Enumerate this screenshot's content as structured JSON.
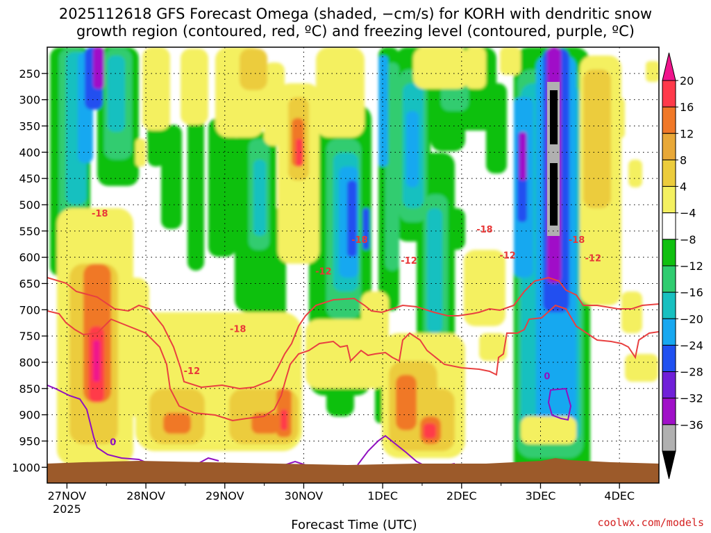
{
  "title": {
    "line1": "2025112618 GFS Forecast Omega (shaded, −cm/s) for KORH with dendritic snow",
    "line2": "growth region (contoured, red, ºC) and freezing level (contoured, purple, ºC)"
  },
  "credit": "coolwx.com/models",
  "chart_data": {
    "type": "heatmap",
    "title": "2025112618 GFS Forecast Omega (shaded, −cm/s) for KORH with dendritic snow growth region (contoured, red, ºC) and freezing level (contoured, purple, ºC)",
    "xlabel": "Forecast Time (UTC)",
    "ylabel": "",
    "x_range_hours": [
      0,
      186
    ],
    "y_range_hpa": [
      200,
      1030
    ],
    "x_ticks": [
      {
        "label": "27NOV",
        "hour": 6,
        "sub": "2025"
      },
      {
        "label": "28NOV",
        "hour": 30
      },
      {
        "label": "29NOV",
        "hour": 54
      },
      {
        "label": "30NOV",
        "hour": 78
      },
      {
        "label": "1DEC",
        "hour": 102
      },
      {
        "label": "2DEC",
        "hour": 126
      },
      {
        "label": "3DEC",
        "hour": 150
      },
      {
        "label": "4DEC",
        "hour": 174
      }
    ],
    "y_ticks": [
      {
        "label": "250",
        "p": 250
      },
      {
        "label": "300",
        "p": 300
      },
      {
        "label": "350",
        "p": 350
      },
      {
        "label": "400",
        "p": 400
      },
      {
        "label": "450",
        "p": 450
      },
      {
        "label": "500",
        "p": 500
      },
      {
        "label": "550",
        "p": 550
      },
      {
        "label": "600",
        "p": 600
      },
      {
        "label": "650",
        "p": 650
      },
      {
        "label": "700",
        "p": 700
      },
      {
        "label": "750",
        "p": 750
      },
      {
        "label": "800",
        "p": 800
      },
      {
        "label": "850",
        "p": 850
      },
      {
        "label": "900",
        "p": 900
      },
      {
        "label": "950",
        "p": 950
      },
      {
        "label": "1000",
        "p": 1000
      }
    ],
    "colorbar": {
      "levels": [
        -36,
        -32,
        -28,
        -24,
        -20,
        -16,
        -12,
        -8,
        -4,
        4,
        8,
        12,
        16,
        20
      ],
      "labels": [
        "20",
        "16",
        "12",
        "8",
        "4",
        "−4",
        "−8",
        "−12",
        "−16",
        "−20",
        "−24",
        "−28",
        "−32",
        "−36"
      ],
      "colors_top_to_bottom": [
        "#ff3a4a",
        "#f07828",
        "#e8a838",
        "#eccc3c",
        "#f4f060",
        "#ffffff",
        "#10c010",
        "#30cc70",
        "#18c0c0",
        "#18a8f0",
        "#2050f0",
        "#7020d8",
        "#a010c8",
        "#b0b0b0"
      ],
      "over_color": "#f0148c",
      "under_color": "#000000"
    },
    "shaded_features": [
      {
        "name": "strong ascent 27 Nov",
        "hour": 12,
        "p_top": 420,
        "p_bottom": 900,
        "peak_cm_s": 20
      },
      {
        "name": "lower ascent 29 Nov",
        "hour": 68,
        "p_top": 620,
        "p_bottom": 920,
        "peak_cm_s": 16
      },
      {
        "name": "lower ascent 1 Dec",
        "hour": 112,
        "p_top": 560,
        "p_bottom": 920,
        "peak_cm_s": 20
      },
      {
        "name": "strong descent 3 Dec",
        "hour": 150,
        "p_top": 210,
        "p_bottom": 430,
        "peak_cm_s": -36
      },
      {
        "name": "descent 30 Nov",
        "hour": 95,
        "p_top": 250,
        "p_bottom": 500,
        "peak_cm_s": -24
      }
    ],
    "contour_labels": [
      {
        "text": "-18",
        "color": "#e83838",
        "hour": 16,
        "p": 520
      },
      {
        "text": "-18",
        "color": "#e83838",
        "hour": 58,
        "p": 740
      },
      {
        "text": "-12",
        "color": "#e83838",
        "hour": 44,
        "p": 820
      },
      {
        "text": "-18",
        "color": "#e83838",
        "hour": 95,
        "p": 570
      },
      {
        "text": "-12",
        "color": "#e83838",
        "hour": 84,
        "p": 630
      },
      {
        "text": "-12",
        "color": "#e83838",
        "hour": 110,
        "p": 610
      },
      {
        "text": "-18",
        "color": "#e83838",
        "hour": 133,
        "p": 550
      },
      {
        "text": "-18",
        "color": "#e83838",
        "hour": 161,
        "p": 570
      },
      {
        "text": "-12",
        "color": "#e83838",
        "hour": 166,
        "p": 605
      },
      {
        "text": "-12",
        "color": "#e83838",
        "hour": 140,
        "p": 600
      },
      {
        "text": "0",
        "color": "#9010c0",
        "hour": 20,
        "p": 955
      },
      {
        "text": "0",
        "color": "#9010c0",
        "hour": 152,
        "p": 830
      }
    ]
  }
}
